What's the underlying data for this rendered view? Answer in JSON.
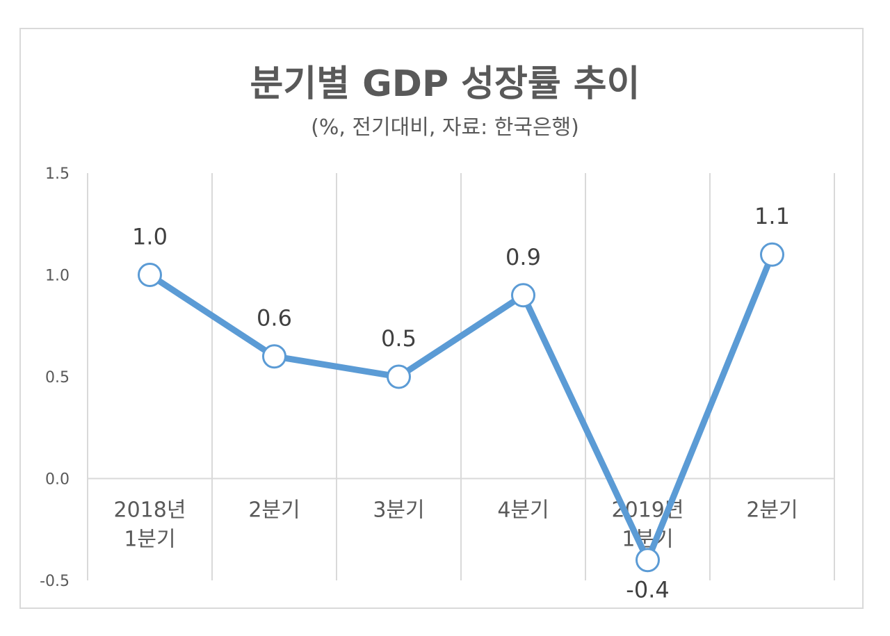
{
  "chart_data": {
    "type": "line",
    "title": "분기별 GDP 성장률 추이",
    "subtitle": "(%, 전기대비, 자료: 한국은행)",
    "categories": [
      [
        "2018년",
        "1분기"
      ],
      [
        "2분기"
      ],
      [
        "3분기"
      ],
      [
        "4분기"
      ],
      [
        "2019년",
        "1분기"
      ],
      [
        "2분기"
      ]
    ],
    "series": [
      {
        "values": [
          1.0,
          0.6,
          0.5,
          0.9,
          -0.4,
          1.1
        ]
      }
    ],
    "data_labels": [
      "1.0",
      "0.6",
      "0.5",
      "0.9",
      "-0.4",
      "1.1"
    ],
    "yticks": [
      "1.5",
      "1.0",
      "0.5",
      "0.0",
      "-0.5"
    ],
    "ytick_values": [
      1.5,
      1.0,
      0.5,
      0.0,
      -0.5
    ],
    "ylim": [
      -0.5,
      1.5
    ],
    "grid": "vertical",
    "line_color": "#5b9bd5",
    "marker_fill": "#ffffff",
    "grid_color": "#d9d9d9",
    "text_color": "#595959"
  }
}
